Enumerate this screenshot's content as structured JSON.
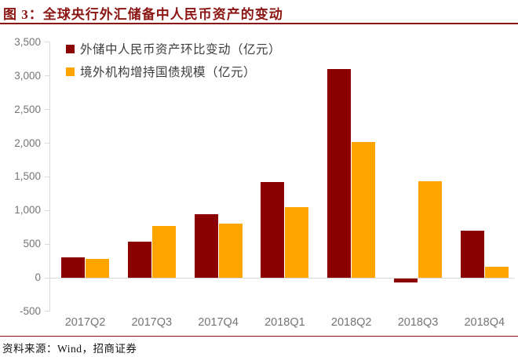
{
  "header": {
    "title": "图 3：全球央行外汇储备中人民币资产的变动"
  },
  "chart_data": {
    "type": "bar",
    "title": "全球央行外汇储备中人民币资产的变动",
    "categories": [
      "2017Q2",
      "2017Q3",
      "2017Q4",
      "2018Q1",
      "2018Q2",
      "2018Q3",
      "2018Q4"
    ],
    "series": [
      {
        "name": "外储中人民币资产环比变动（亿元）",
        "color": "#8B0000",
        "values": [
          300,
          540,
          950,
          1420,
          3100,
          -60,
          700
        ]
      },
      {
        "name": "境外机构增持国债规模（亿元）",
        "color": "#FFA400",
        "values": [
          280,
          770,
          800,
          1050,
          2020,
          1430,
          160
        ]
      }
    ],
    "ylim": [
      -500,
      3500
    ],
    "ytick_step": 500,
    "ytick_labels": [
      "-500",
      "0",
      "500",
      "1,000",
      "1,500",
      "2,000",
      "2,500",
      "3,000",
      "3,500"
    ],
    "xlabel": "",
    "ylabel": "",
    "grid": false,
    "legend_position": "top-left"
  },
  "footer": {
    "source": "资料来源：Wind，招商证券"
  },
  "colors": {
    "accent_rule": "#8B1513",
    "axis_line": "#D9D9D9",
    "tick_text": "#757575"
  }
}
